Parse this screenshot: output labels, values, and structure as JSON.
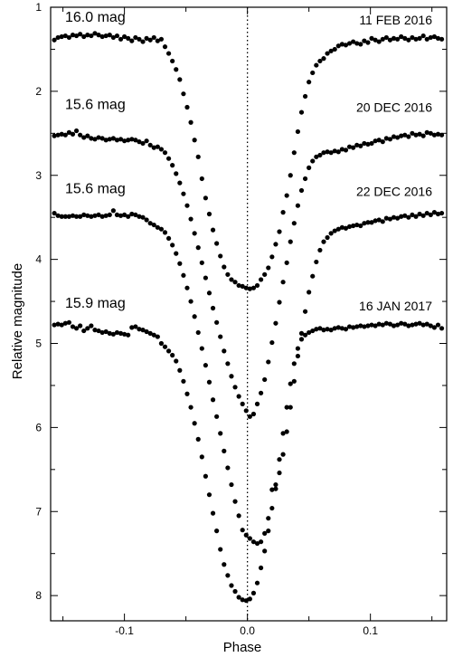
{
  "chart_data": {
    "type": "scatter",
    "title": "",
    "xlabel": "Phase",
    "ylabel": "Relative magnitude",
    "xlim": [
      -0.16,
      0.162
    ],
    "ylim": [
      1.0,
      8.3
    ],
    "y_inverted": true,
    "x_ticks": [
      {
        "value": -0.1,
        "label": "-0.1"
      },
      {
        "value": 0.0,
        "label": "0.0"
      },
      {
        "value": 0.1,
        "label": "0.1"
      }
    ],
    "y_ticks": [
      {
        "value": 1,
        "label": "1"
      },
      {
        "value": 2,
        "label": "2"
      },
      {
        "value": 3,
        "label": "3"
      },
      {
        "value": 4,
        "label": "4"
      },
      {
        "value": 5,
        "label": "5"
      },
      {
        "value": 6,
        "label": "6"
      },
      {
        "value": 7,
        "label": "7"
      },
      {
        "value": 8,
        "label": "8"
      }
    ],
    "reference_line": {
      "x": 0.0,
      "style": "dotted"
    },
    "grid": false,
    "marker_color": "#000000",
    "series": [
      {
        "date_label": "11 FEB 2016",
        "mag_label": "16.0 mag",
        "baseline": 1.35,
        "baseline2": 1.37,
        "depth": 3.0,
        "width": 0.022,
        "mid_offset": 0.0,
        "x": [
          -0.157,
          -0.154,
          -0.151,
          -0.148,
          -0.145,
          -0.142,
          -0.139,
          -0.136,
          -0.133,
          -0.13,
          -0.127,
          -0.124,
          -0.121,
          -0.118,
          -0.115,
          -0.112,
          -0.109,
          -0.106,
          -0.103,
          -0.1,
          -0.097,
          -0.094,
          -0.091,
          -0.088,
          -0.085,
          -0.082,
          -0.079,
          -0.076,
          -0.073,
          -0.07,
          -0.067,
          -0.064,
          -0.061,
          -0.058,
          -0.055,
          -0.052,
          -0.049,
          -0.046,
          -0.043,
          -0.04,
          -0.037,
          -0.034,
          -0.031,
          -0.028,
          -0.025,
          -0.022,
          -0.019,
          -0.016,
          -0.013,
          -0.01,
          -0.007,
          -0.004,
          -0.001,
          0.002,
          0.005,
          0.008,
          0.011,
          0.014,
          0.017,
          0.02,
          0.023,
          0.026,
          0.029,
          0.032,
          0.035,
          0.038,
          0.041,
          0.044,
          0.047,
          0.05,
          0.053,
          0.056,
          0.059,
          0.062,
          0.065,
          0.068,
          0.071,
          0.074,
          0.077,
          0.08,
          0.083,
          0.086,
          0.089,
          0.092,
          0.095,
          0.098,
          0.101,
          0.104,
          0.107,
          0.11,
          0.113,
          0.116,
          0.119,
          0.122,
          0.125,
          0.128,
          0.131,
          0.134,
          0.137,
          0.14,
          0.143,
          0.146,
          0.149,
          0.152,
          0.155,
          0.158
        ],
        "y": [
          1.39,
          1.36,
          1.35,
          1.34,
          1.36,
          1.33,
          1.34,
          1.32,
          1.35,
          1.33,
          1.34,
          1.31,
          1.33,
          1.35,
          1.34,
          1.33,
          1.36,
          1.34,
          1.38,
          1.35,
          1.37,
          1.4,
          1.36,
          1.38,
          1.41,
          1.37,
          1.39,
          1.36,
          1.4,
          1.38,
          1.47,
          1.55,
          1.64,
          1.74,
          1.86,
          2.03,
          2.19,
          2.37,
          2.58,
          2.78,
          3.04,
          3.27,
          3.46,
          3.65,
          3.81,
          3.96,
          4.09,
          4.18,
          4.24,
          4.27,
          4.31,
          4.32,
          4.34,
          4.35,
          4.34,
          4.31,
          4.24,
          4.18,
          4.1,
          3.97,
          3.82,
          3.67,
          3.44,
          3.24,
          3.0,
          2.73,
          2.48,
          2.25,
          2.06,
          1.89,
          1.78,
          1.69,
          1.64,
          1.61,
          1.55,
          1.52,
          1.5,
          1.46,
          1.44,
          1.45,
          1.43,
          1.41,
          1.43,
          1.44,
          1.4,
          1.42,
          1.37,
          1.39,
          1.41,
          1.38,
          1.36,
          1.39,
          1.37,
          1.38,
          1.35,
          1.37,
          1.39,
          1.36,
          1.38,
          1.37,
          1.34,
          1.38,
          1.36,
          1.35,
          1.37,
          1.38
        ]
      },
      {
        "date_label": "20 DEC 2016",
        "mag_label": "15.6 mag",
        "x": [
          -0.157,
          -0.154,
          -0.151,
          -0.148,
          -0.145,
          -0.142,
          -0.139,
          -0.136,
          -0.133,
          -0.13,
          -0.127,
          -0.124,
          -0.121,
          -0.118,
          -0.115,
          -0.112,
          -0.109,
          -0.106,
          -0.103,
          -0.1,
          -0.097,
          -0.094,
          -0.091,
          -0.088,
          -0.085,
          -0.082,
          -0.079,
          -0.076,
          -0.073,
          -0.07,
          -0.067,
          -0.064,
          -0.061,
          -0.058,
          -0.055,
          -0.052,
          -0.049,
          -0.046,
          -0.043,
          -0.04,
          -0.037,
          -0.034,
          -0.031,
          -0.028,
          -0.025,
          -0.022,
          -0.019,
          -0.016,
          -0.013,
          -0.01,
          -0.007,
          -0.004,
          -0.001,
          0.002,
          0.005,
          0.008,
          0.011,
          0.014,
          0.017,
          0.02,
          0.023,
          0.026,
          0.029,
          0.032,
          0.035,
          0.038,
          0.041,
          0.044,
          0.047,
          0.05,
          0.053,
          0.056,
          0.059,
          0.062,
          0.065,
          0.068,
          0.071,
          0.074,
          0.077,
          0.08,
          0.083,
          0.086,
          0.089,
          0.092,
          0.095,
          0.098,
          0.101,
          0.104,
          0.107,
          0.11,
          0.113,
          0.116,
          0.119,
          0.122,
          0.125,
          0.128,
          0.131,
          0.134,
          0.137,
          0.14,
          0.143,
          0.146,
          0.149,
          0.152,
          0.155,
          0.158
        ],
        "y": [
          2.53,
          2.52,
          2.51,
          2.52,
          2.49,
          2.51,
          2.47,
          2.52,
          2.55,
          2.53,
          2.56,
          2.57,
          2.55,
          2.56,
          2.58,
          2.57,
          2.56,
          2.58,
          2.57,
          2.59,
          2.58,
          2.57,
          2.58,
          2.6,
          2.62,
          2.59,
          2.64,
          2.67,
          2.66,
          2.69,
          2.73,
          2.8,
          2.88,
          2.98,
          3.09,
          3.22,
          3.36,
          3.52,
          3.69,
          3.86,
          4.04,
          4.22,
          4.4,
          4.58,
          4.75,
          4.92,
          5.09,
          5.24,
          5.39,
          5.52,
          5.63,
          5.72,
          5.8,
          5.87,
          5.84,
          5.72,
          5.59,
          5.43,
          5.22,
          4.99,
          4.76,
          4.51,
          4.27,
          4.04,
          3.79,
          3.57,
          3.36,
          3.18,
          3.04,
          2.91,
          2.83,
          2.78,
          2.76,
          2.73,
          2.72,
          2.73,
          2.71,
          2.72,
          2.69,
          2.7,
          2.66,
          2.67,
          2.64,
          2.65,
          2.62,
          2.63,
          2.62,
          2.59,
          2.58,
          2.6,
          2.56,
          2.57,
          2.54,
          2.55,
          2.53,
          2.52,
          2.54,
          2.5,
          2.52,
          2.51,
          2.53,
          2.49,
          2.5,
          2.52,
          2.51,
          2.52
        ]
      },
      {
        "date_label": "22 DEC 2016",
        "mag_label": "15.6 mag",
        "x": [
          -0.157,
          -0.154,
          -0.151,
          -0.148,
          -0.145,
          -0.142,
          -0.139,
          -0.136,
          -0.133,
          -0.13,
          -0.127,
          -0.124,
          -0.121,
          -0.118,
          -0.115,
          -0.112,
          -0.109,
          -0.106,
          -0.103,
          -0.1,
          -0.097,
          -0.094,
          -0.091,
          -0.088,
          -0.085,
          -0.082,
          -0.079,
          -0.076,
          -0.073,
          -0.07,
          -0.067,
          -0.064,
          -0.061,
          -0.058,
          -0.055,
          -0.052,
          -0.049,
          -0.046,
          -0.043,
          -0.04,
          -0.037,
          -0.034,
          -0.031,
          -0.028,
          -0.025,
          -0.022,
          -0.019,
          -0.016,
          -0.013,
          -0.01,
          -0.007,
          -0.004,
          -0.001,
          0.002,
          0.005,
          0.008,
          0.011,
          0.014,
          0.017,
          0.02,
          0.023,
          0.026,
          0.029,
          0.032,
          0.035,
          0.038,
          0.041,
          0.044,
          0.047,
          0.05,
          0.053,
          0.056,
          0.059,
          0.062,
          0.065,
          0.068,
          0.071,
          0.074,
          0.077,
          0.08,
          0.083,
          0.086,
          0.089,
          0.092,
          0.095,
          0.098,
          0.101,
          0.104,
          0.107,
          0.11,
          0.113,
          0.116,
          0.119,
          0.122,
          0.125,
          0.128,
          0.131,
          0.134,
          0.137,
          0.14,
          0.143,
          0.146,
          0.149,
          0.152,
          0.155,
          0.158
        ],
        "y": [
          3.45,
          3.48,
          3.49,
          3.49,
          3.49,
          3.48,
          3.49,
          3.49,
          3.47,
          3.48,
          3.49,
          3.48,
          3.47,
          3.49,
          3.48,
          3.47,
          3.42,
          3.47,
          3.48,
          3.47,
          3.49,
          3.46,
          3.47,
          3.49,
          3.5,
          3.53,
          3.57,
          3.59,
          3.62,
          3.64,
          3.68,
          3.75,
          3.83,
          3.93,
          4.05,
          4.19,
          4.34,
          4.5,
          4.68,
          4.87,
          5.06,
          5.26,
          5.46,
          5.67,
          5.87,
          6.07,
          6.28,
          6.48,
          6.68,
          6.88,
          7.05,
          7.22,
          7.28,
          7.32,
          7.36,
          7.38,
          7.36,
          7.26,
          7.08,
          6.74,
          6.73,
          6.54,
          6.32,
          6.05,
          5.76,
          5.45,
          5.15,
          4.88,
          4.62,
          4.39,
          4.2,
          4.03,
          3.89,
          3.79,
          3.74,
          3.69,
          3.66,
          3.64,
          3.62,
          3.63,
          3.61,
          3.6,
          3.59,
          3.6,
          3.57,
          3.56,
          3.56,
          3.54,
          3.53,
          3.55,
          3.51,
          3.52,
          3.5,
          3.51,
          3.49,
          3.48,
          3.5,
          3.47,
          3.49,
          3.46,
          3.48,
          3.45,
          3.47,
          3.44,
          3.46,
          3.45
        ]
      },
      {
        "date_label": "16 JAN 2017",
        "mag_label": "15.9 mag",
        "x": [
          -0.157,
          -0.154,
          -0.151,
          -0.148,
          -0.145,
          -0.142,
          -0.139,
          -0.136,
          -0.133,
          -0.13,
          -0.127,
          -0.124,
          -0.121,
          -0.118,
          -0.115,
          -0.112,
          -0.109,
          -0.106,
          -0.103,
          -0.1,
          -0.097,
          -0.094,
          -0.091,
          -0.088,
          -0.085,
          -0.082,
          -0.079,
          -0.076,
          -0.073,
          -0.07,
          -0.067,
          -0.064,
          -0.061,
          -0.058,
          -0.055,
          -0.052,
          -0.049,
          -0.046,
          -0.043,
          -0.04,
          -0.037,
          -0.034,
          -0.031,
          -0.028,
          -0.025,
          -0.022,
          -0.019,
          -0.016,
          -0.013,
          -0.01,
          -0.007,
          -0.004,
          -0.001,
          0.002,
          0.005,
          0.008,
          0.011,
          0.014,
          0.017,
          0.02,
          0.023,
          0.026,
          0.029,
          0.032,
          0.035,
          0.038,
          0.041,
          0.044,
          0.047,
          0.05,
          0.053,
          0.056,
          0.059,
          0.062,
          0.065,
          0.068,
          0.071,
          0.074,
          0.077,
          0.08,
          0.083,
          0.086,
          0.089,
          0.092,
          0.095,
          0.098,
          0.101,
          0.104,
          0.107,
          0.11,
          0.113,
          0.116,
          0.119,
          0.122,
          0.125,
          0.128,
          0.131,
          0.134,
          0.137,
          0.14,
          0.143,
          0.146,
          0.149,
          0.152,
          0.155,
          0.158
        ],
        "y": [
          4.78,
          4.77,
          4.78,
          4.76,
          4.75,
          4.8,
          4.82,
          4.79,
          4.85,
          4.82,
          4.79,
          4.84,
          4.85,
          4.87,
          4.86,
          4.88,
          4.89,
          4.87,
          4.88,
          4.89,
          4.9,
          4.81,
          4.8,
          4.83,
          4.84,
          4.86,
          4.88,
          4.9,
          4.92,
          5.0,
          5.04,
          5.09,
          5.14,
          5.21,
          5.32,
          5.45,
          5.6,
          5.76,
          5.95,
          6.14,
          6.35,
          6.58,
          6.8,
          7.02,
          7.23,
          7.45,
          7.63,
          7.76,
          7.88,
          7.95,
          8.02,
          8.05,
          8.06,
          8.04,
          7.97,
          7.85,
          7.67,
          7.47,
          7.23,
          6.96,
          6.68,
          6.38,
          6.07,
          5.76,
          5.48,
          5.24,
          5.06,
          4.95,
          4.9,
          4.87,
          4.85,
          4.83,
          4.82,
          4.84,
          4.83,
          4.84,
          4.82,
          4.81,
          4.82,
          4.83,
          4.8,
          4.81,
          4.8,
          4.79,
          4.8,
          4.79,
          4.78,
          4.79,
          4.77,
          4.78,
          4.76,
          4.77,
          4.79,
          4.78,
          4.76,
          4.77,
          4.79,
          4.78,
          4.77,
          4.76,
          4.78,
          4.77,
          4.79,
          4.81,
          4.78,
          4.82
        ]
      }
    ]
  }
}
